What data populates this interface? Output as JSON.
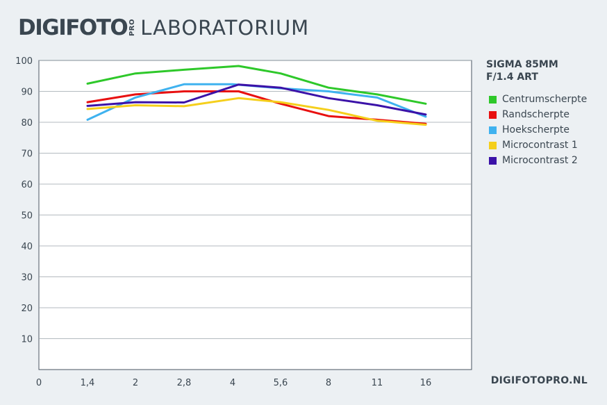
{
  "header": {
    "brand": "DIGIFOTO",
    "brand_sup": "PRO",
    "title": "LABORATORIUM"
  },
  "footer": {
    "site": "DIGIFOTOPRO.NL"
  },
  "chart_data": {
    "type": "line",
    "title": "SIGMA 85MM F/1.4 ART",
    "title_lines": [
      "SIGMA 85MM",
      "F/1.4 ART"
    ],
    "xlabel": "",
    "ylabel": "",
    "x_tick_labels": [
      "0",
      "1,4",
      "2",
      "2,8",
      "4",
      "5,6",
      "8",
      "11",
      "16"
    ],
    "y_ticks": [
      10,
      20,
      30,
      40,
      50,
      60,
      70,
      80,
      90,
      100
    ],
    "ylim": [
      0,
      100
    ],
    "grid": "horizontal",
    "legend_position": "right",
    "points_x": [
      1,
      2,
      3,
      4,
      5,
      6,
      7,
      8,
      9
    ],
    "x_positions_label": [
      "1,4",
      "2",
      "2,8",
      "4",
      "4",
      "5,6",
      "8",
      "11",
      "16"
    ],
    "series": [
      {
        "name": "Centrumscherpte",
        "color": "#2ec82a",
        "points": [
          [
            1.4,
            92.5
          ],
          [
            2,
            95.8
          ],
          [
            2.8,
            97
          ],
          [
            4.2,
            98.2
          ],
          [
            5.6,
            95.8
          ],
          [
            8,
            91.2
          ],
          [
            11,
            89
          ],
          [
            16,
            86
          ]
        ]
      },
      {
        "name": "Randscherpte",
        "color": "#e81010",
        "points": [
          [
            1.4,
            86.5
          ],
          [
            2,
            89
          ],
          [
            2.8,
            90
          ],
          [
            4.2,
            90
          ],
          [
            5.6,
            86
          ],
          [
            8,
            82
          ],
          [
            11,
            80.8
          ],
          [
            16,
            79.5
          ]
        ]
      },
      {
        "name": "Hoekscherpte",
        "color": "#3fb2ef",
        "points": [
          [
            1.4,
            80.8
          ],
          [
            2,
            88
          ],
          [
            2.8,
            92.3
          ],
          [
            4,
            92.3
          ],
          [
            5.6,
            91
          ],
          [
            8,
            90
          ],
          [
            11,
            88
          ],
          [
            16,
            81.8
          ]
        ]
      },
      {
        "name": "Microcontrast 1",
        "color": "#f5cf1c",
        "points": [
          [
            1.4,
            84.3
          ],
          [
            2,
            85.5
          ],
          [
            2.8,
            85.2
          ],
          [
            4.2,
            87.8
          ],
          [
            5.6,
            86.5
          ],
          [
            8,
            84
          ],
          [
            11,
            80.5
          ],
          [
            16,
            79.2
          ]
        ]
      },
      {
        "name": "Microcontrast 2",
        "color": "#3b12a8",
        "points": [
          [
            1.4,
            85.3
          ],
          [
            2,
            86.5
          ],
          [
            2.8,
            86.4
          ],
          [
            4.2,
            92.2
          ],
          [
            5.6,
            91.2
          ],
          [
            8,
            87.8
          ],
          [
            11,
            85.5
          ],
          [
            16,
            82.5
          ]
        ]
      }
    ]
  }
}
